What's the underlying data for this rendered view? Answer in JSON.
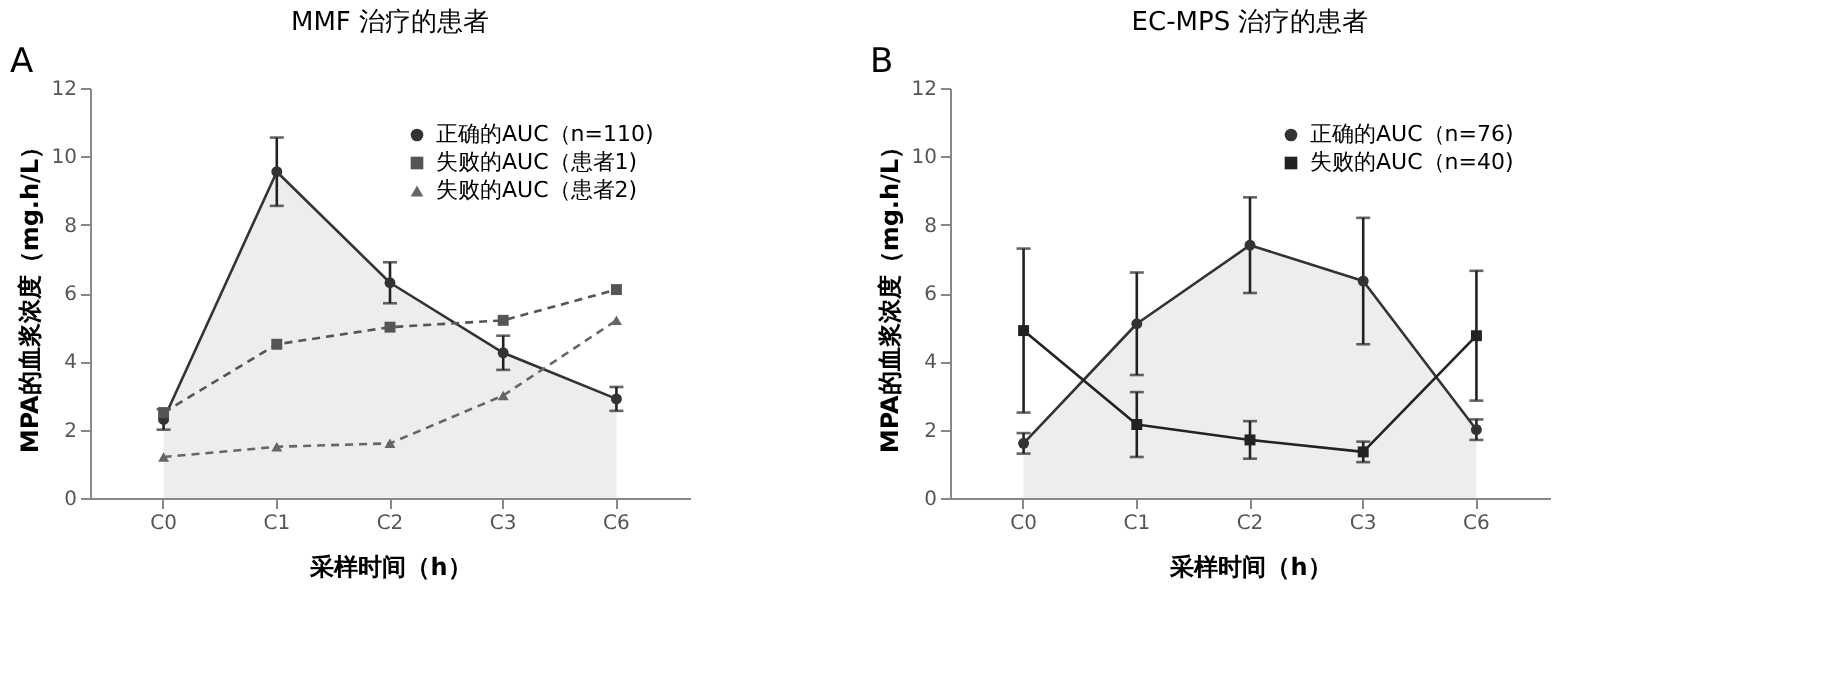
{
  "chart_data": [
    {
      "type": "line",
      "title": "MMF 治疗的患者",
      "xlabel": "采样时间（h）",
      "ylabel": "MPA的血浆浓度（mg.h/L）",
      "annotations": [
        "A"
      ],
      "categories": [
        "C0",
        "C1",
        "C2",
        "C3",
        "C6"
      ],
      "ylim": [
        0,
        12
      ],
      "yticks": [
        0,
        2,
        4,
        6,
        8,
        10,
        12
      ],
      "grid": false,
      "legend": "top right",
      "series": [
        {
          "name": "正确的AUC（n=110)",
          "type": "area",
          "color": "#333333",
          "marker": "circle",
          "line_style": "solid",
          "values": [
            2.3,
            9.55,
            6.3,
            4.25,
            2.9
          ],
          "errors": [
            0.3,
            1.0,
            0.6,
            0.5,
            0.35
          ]
        },
        {
          "name": "失败的AUC（患者1)",
          "color": "#555555",
          "marker": "square",
          "line_style": "dashed",
          "values": [
            2.5,
            4.5,
            5.0,
            5.2,
            6.1
          ]
        },
        {
          "name": "失败的AUC（患者2)",
          "color": "#666666",
          "marker": "triangle",
          "line_style": "dashed",
          "values": [
            1.2,
            1.5,
            1.6,
            3.0,
            5.2
          ]
        }
      ]
    },
    {
      "type": "line",
      "title": "EC-MPS 治疗的患者",
      "xlabel": "采样时间（h）",
      "ylabel": "MPA的血浆浓度（mg.h/L）",
      "annotations": [
        "B"
      ],
      "categories": [
        "C0",
        "C1",
        "C2",
        "C3",
        "C6"
      ],
      "ylim": [
        0,
        12
      ],
      "yticks": [
        0,
        2,
        4,
        6,
        8,
        10,
        12
      ],
      "grid": false,
      "legend": "top right",
      "series": [
        {
          "name": "正确的AUC（n=76)",
          "type": "area",
          "color": "#333333",
          "marker": "circle",
          "line_style": "solid",
          "values": [
            1.6,
            5.1,
            7.4,
            6.35,
            2.0
          ],
          "errors": [
            0.3,
            1.5,
            1.4,
            1.85,
            0.3
          ]
        },
        {
          "name": "失败的AUC（n=40)",
          "color": "#222222",
          "marker": "square",
          "line_style": "solid",
          "values": [
            4.9,
            2.15,
            1.7,
            1.35,
            4.75
          ],
          "errors": [
            2.4,
            0.95,
            0.55,
            0.3,
            1.9
          ]
        }
      ]
    }
  ]
}
